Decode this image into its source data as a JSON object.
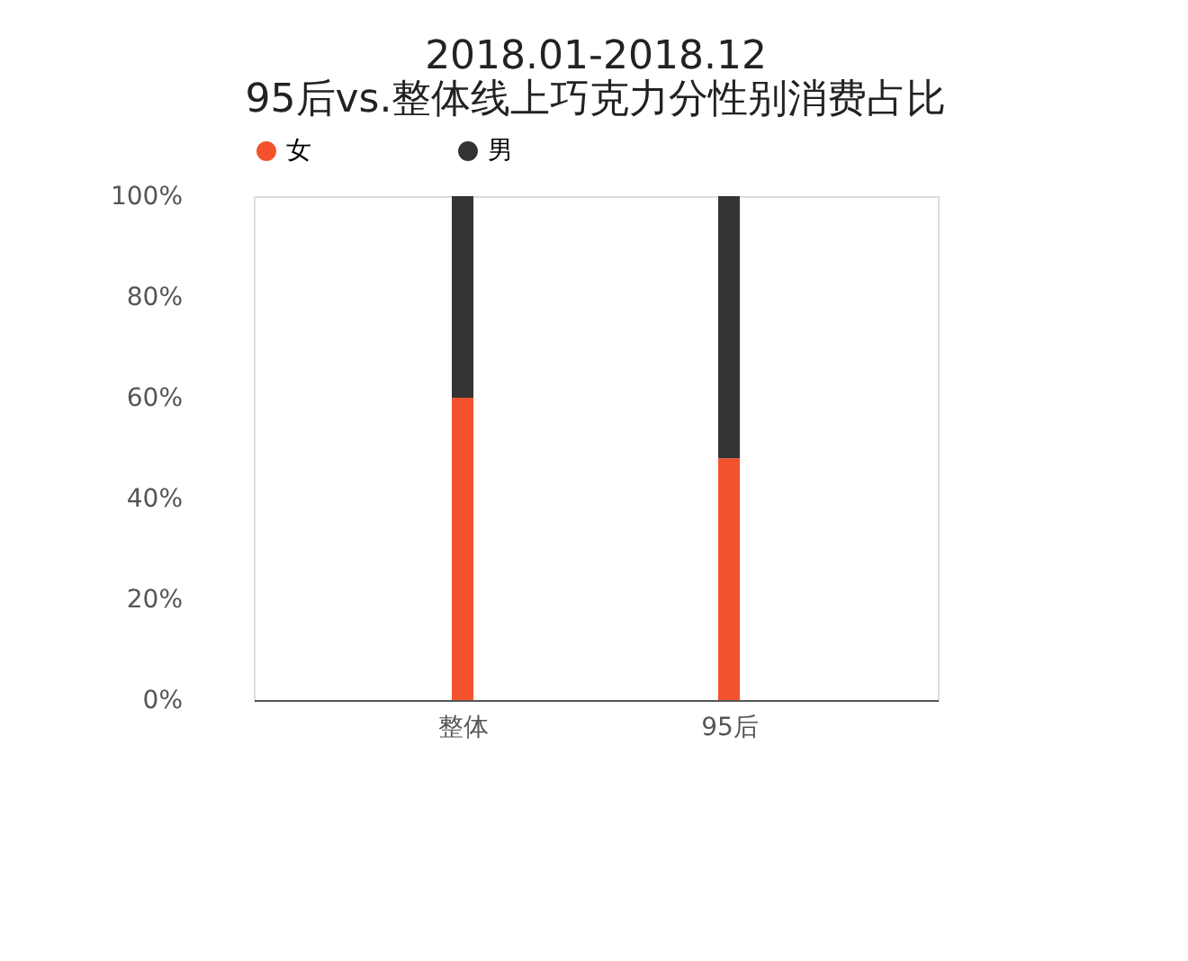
{
  "chart_data": {
    "type": "bar",
    "title": "2018.01-2018.12\n95后vs.整体线上巧克力分性别消费占比",
    "categories": [
      "整体",
      "95后"
    ],
    "series": [
      {
        "name": "女",
        "color": "#f4522d",
        "values": [
          60,
          48
        ]
      },
      {
        "name": "男",
        "color": "#333333",
        "values": [
          40,
          52
        ]
      }
    ],
    "stacked": true,
    "ylim": [
      0,
      100
    ],
    "yticks": [
      {
        "value": 0,
        "label": "0%"
      },
      {
        "value": 20,
        "label": "20%"
      },
      {
        "value": 40,
        "label": "40%"
      },
      {
        "value": 60,
        "label": "60%"
      },
      {
        "value": 80,
        "label": "80%"
      },
      {
        "value": 100,
        "label": "100%"
      }
    ],
    "grid": false,
    "legend": "top"
  }
}
